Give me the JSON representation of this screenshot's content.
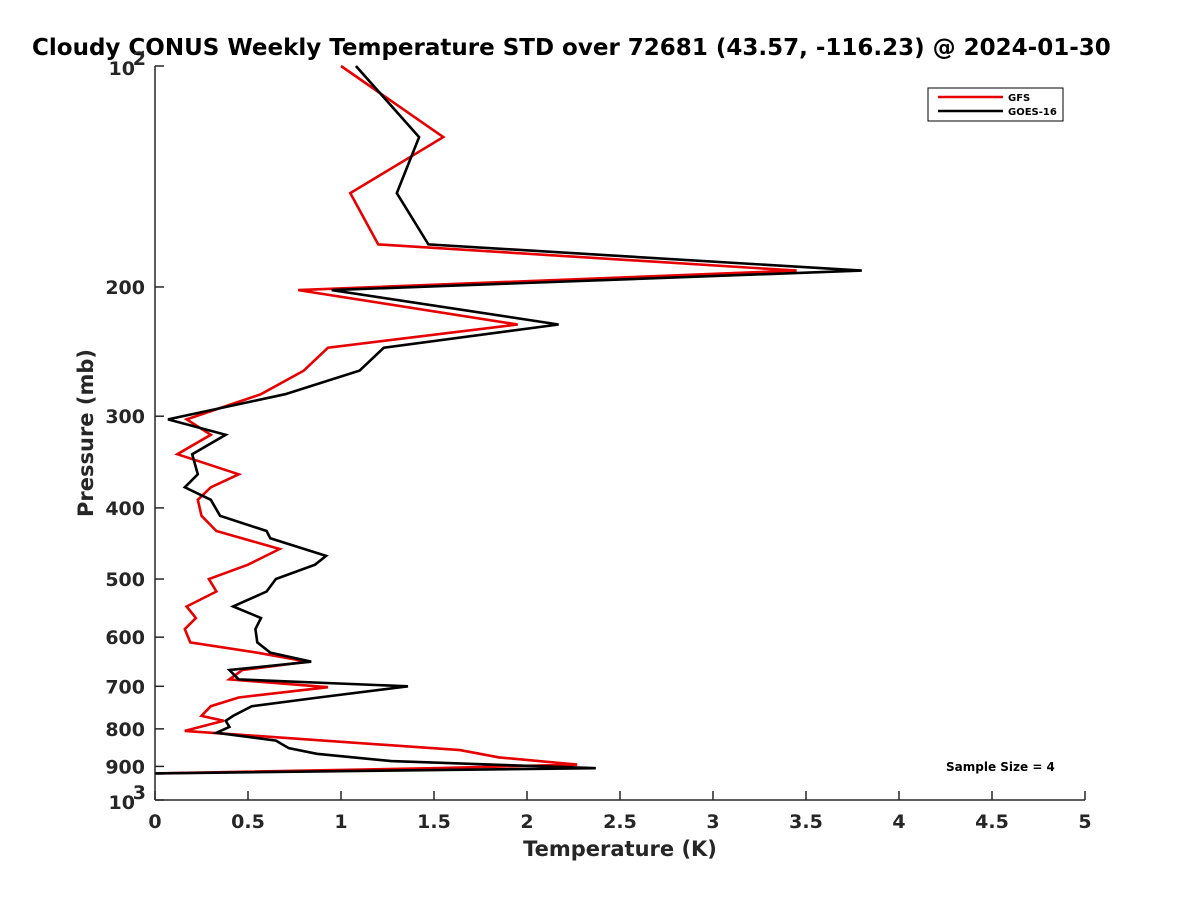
{
  "chart_data": {
    "type": "line",
    "title": "Cloudy CONUS Weekly Temperature STD over 72681 (43.57, -116.23) @ 2024-01-30",
    "xlabel": "Temperature (K)",
    "ylabel": "Pressure (mb)",
    "xlim": [
      0,
      5
    ],
    "ylim": [
      100,
      1000
    ],
    "y_scale": "log",
    "y_reversed": true,
    "x_ticks": [
      "0",
      "0.5",
      "1",
      "1.5",
      "2",
      "2.5",
      "3",
      "3.5",
      "4",
      "4.5",
      "5"
    ],
    "y_ticks": [
      {
        "value": 100,
        "base": "10",
        "exp": "2"
      },
      {
        "value": 200,
        "label": "200"
      },
      {
        "value": 300,
        "label": "300"
      },
      {
        "value": 400,
        "label": "400"
      },
      {
        "value": 500,
        "label": "500"
      },
      {
        "value": 600,
        "label": "600"
      },
      {
        "value": 700,
        "label": "700"
      },
      {
        "value": 800,
        "label": "800"
      },
      {
        "value": 900,
        "label": "900"
      },
      {
        "value": 1000,
        "base": "10",
        "exp": "3"
      }
    ],
    "legend_position": "top-right",
    "annotation": "Sample Size = 4",
    "series": [
      {
        "name": "GFS",
        "color": "#e60000",
        "points": [
          [
            1.0,
            100
          ],
          [
            1.55,
            125
          ],
          [
            1.05,
            149
          ],
          [
            1.2,
            175
          ],
          [
            3.45,
            190
          ],
          [
            0.77,
            202
          ],
          [
            1.95,
            225
          ],
          [
            0.93,
            242
          ],
          [
            0.8,
            260
          ],
          [
            0.57,
            280
          ],
          [
            0.17,
            303
          ],
          [
            0.3,
            318
          ],
          [
            0.12,
            338
          ],
          [
            0.45,
            360
          ],
          [
            0.3,
            375
          ],
          [
            0.23,
            390
          ],
          [
            0.25,
            410
          ],
          [
            0.33,
            430
          ],
          [
            0.67,
            455
          ],
          [
            0.5,
            478
          ],
          [
            0.29,
            500
          ],
          [
            0.33,
            520
          ],
          [
            0.17,
            545
          ],
          [
            0.22,
            565
          ],
          [
            0.16,
            585
          ],
          [
            0.19,
            610
          ],
          [
            0.55,
            630
          ],
          [
            0.82,
            648
          ],
          [
            0.47,
            665
          ],
          [
            0.4,
            685
          ],
          [
            0.93,
            702
          ],
          [
            0.45,
            725
          ],
          [
            0.3,
            745
          ],
          [
            0.25,
            768
          ],
          [
            0.37,
            780
          ],
          [
            0.16,
            805
          ],
          [
            1.64,
            855
          ],
          [
            1.85,
            875
          ],
          [
            2.27,
            895
          ],
          [
            1.5,
            905
          ],
          [
            0,
            920
          ]
        ]
      },
      {
        "name": "GOES-16",
        "color": "#000000",
        "points": [
          [
            1.08,
            100
          ],
          [
            1.42,
            125
          ],
          [
            1.3,
            149
          ],
          [
            1.47,
            175
          ],
          [
            3.8,
            190
          ],
          [
            0.95,
            202
          ],
          [
            2.17,
            225
          ],
          [
            1.23,
            242
          ],
          [
            1.1,
            260
          ],
          [
            0.7,
            280
          ],
          [
            0.07,
            303
          ],
          [
            0.38,
            318
          ],
          [
            0.2,
            338
          ],
          [
            0.23,
            360
          ],
          [
            0.16,
            375
          ],
          [
            0.3,
            390
          ],
          [
            0.35,
            410
          ],
          [
            0.6,
            430
          ],
          [
            0.62,
            440
          ],
          [
            0.92,
            465
          ],
          [
            0.86,
            478
          ],
          [
            0.65,
            500
          ],
          [
            0.6,
            520
          ],
          [
            0.42,
            545
          ],
          [
            0.57,
            565
          ],
          [
            0.54,
            585
          ],
          [
            0.55,
            610
          ],
          [
            0.62,
            630
          ],
          [
            0.84,
            648
          ],
          [
            0.4,
            665
          ],
          [
            0.45,
            685
          ],
          [
            1.36,
            700
          ],
          [
            0.88,
            725
          ],
          [
            0.52,
            745
          ],
          [
            0.42,
            768
          ],
          [
            0.38,
            780
          ],
          [
            0.4,
            795
          ],
          [
            0.33,
            810
          ],
          [
            0.65,
            830
          ],
          [
            0.72,
            850
          ],
          [
            0.87,
            865
          ],
          [
            1.27,
            885
          ],
          [
            2.2,
            902
          ],
          [
            2.37,
            905
          ],
          [
            0,
            920
          ]
        ]
      }
    ]
  }
}
